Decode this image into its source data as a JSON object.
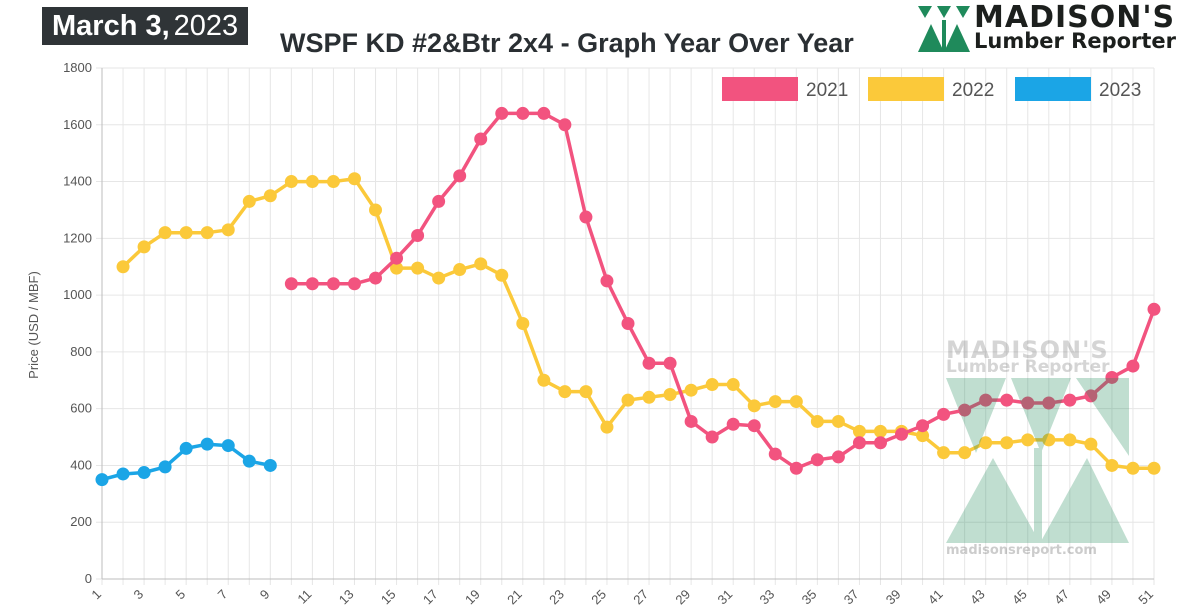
{
  "header": {
    "date_bold": "March 3,",
    "date_year": "2023",
    "title": "WSPF KD #2&Btr 2x4 - Graph Year Over Year"
  },
  "logo": {
    "line1": "MADISON'S",
    "line2": "Lumber Reporter",
    "url": "madisonsreport.com"
  },
  "colors": {
    "s2021": "#f2537f",
    "s2022": "#fbc93a",
    "s2023": "#1ba5e6",
    "logo_green": "#1f8a5b"
  },
  "chart_data": {
    "type": "line",
    "title": "WSPF KD #2&Btr 2x4 - Graph Year Over Year",
    "xlabel": "",
    "ylabel": "Price (USD / MBF)",
    "xlim": [
      1,
      51
    ],
    "ylim": [
      0,
      1800
    ],
    "yticks": [
      0,
      200,
      400,
      600,
      800,
      1000,
      1200,
      1400,
      1600,
      1800
    ],
    "xticks": [
      1,
      3,
      5,
      7,
      9,
      11,
      13,
      15,
      17,
      19,
      21,
      23,
      25,
      27,
      29,
      31,
      33,
      35,
      37,
      39,
      41,
      43,
      45,
      47,
      49,
      51
    ],
    "grid": true,
    "legend": "top-right",
    "series": [
      {
        "name": "2021",
        "x": [
          10,
          11,
          12,
          13,
          14,
          15,
          16,
          17,
          18,
          19,
          20,
          21,
          22,
          23,
          24,
          25,
          26,
          27,
          28,
          29,
          30,
          31,
          32,
          33,
          34,
          35,
          36,
          37,
          38,
          39,
          40,
          41,
          42,
          43,
          44,
          45,
          46,
          47,
          48,
          49,
          50,
          51
        ],
        "values": [
          1040,
          1040,
          1040,
          1040,
          1060,
          1130,
          1210,
          1330,
          1420,
          1550,
          1640,
          1640,
          1640,
          1600,
          1275,
          1050,
          900,
          760,
          760,
          555,
          500,
          545,
          540,
          440,
          390,
          420,
          430,
          480,
          480,
          510,
          540,
          580,
          595,
          630,
          630,
          620,
          620,
          630,
          645,
          710,
          750,
          950
        ]
      },
      {
        "name": "2022",
        "x": [
          2,
          3,
          4,
          5,
          6,
          7,
          8,
          9,
          10,
          11,
          12,
          13,
          14,
          15,
          16,
          17,
          18,
          19,
          20,
          21,
          22,
          23,
          24,
          25,
          26,
          27,
          28,
          29,
          30,
          31,
          32,
          33,
          34,
          35,
          36,
          37,
          38,
          39,
          40,
          41,
          42,
          43,
          44,
          45,
          46,
          47,
          48,
          49,
          50,
          51
        ],
        "values": [
          1100,
          1170,
          1220,
          1220,
          1220,
          1230,
          1330,
          1350,
          1400,
          1400,
          1400,
          1410,
          1300,
          1095,
          1095,
          1060,
          1090,
          1110,
          1070,
          900,
          700,
          660,
          660,
          535,
          630,
          640,
          650,
          665,
          685,
          685,
          610,
          625,
          625,
          555,
          555,
          520,
          520,
          520,
          505,
          445,
          445,
          480,
          480,
          490,
          490,
          490,
          475,
          400,
          390,
          390
        ]
      },
      {
        "name": "2023",
        "x": [
          1,
          2,
          3,
          4,
          5,
          6,
          7,
          8,
          9
        ],
        "values": [
          350,
          370,
          375,
          395,
          460,
          475,
          470,
          415,
          400
        ]
      }
    ]
  }
}
